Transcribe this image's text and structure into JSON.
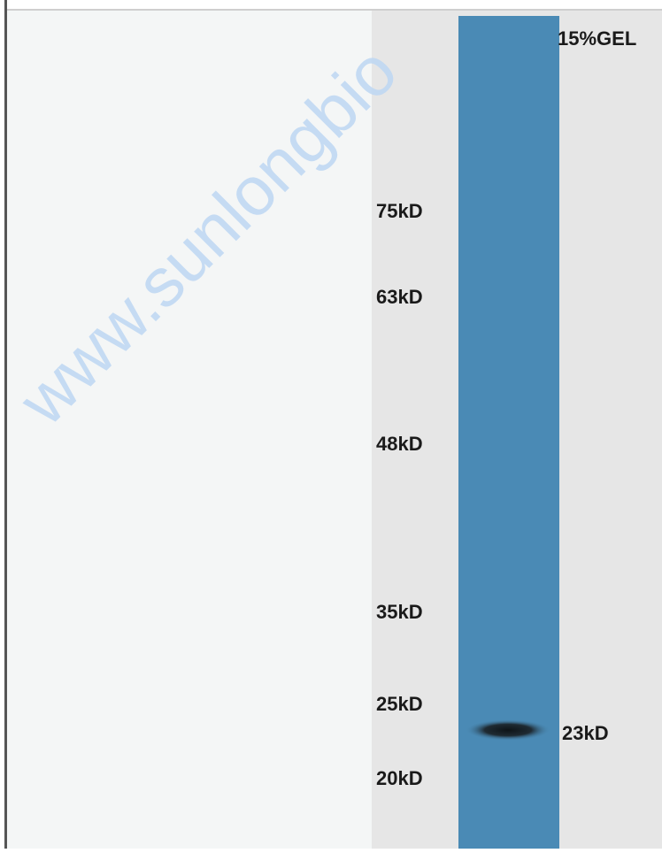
{
  "watermark": "www.sunlongbio",
  "lane_label": "15%GEL",
  "markers": [
    "75kD",
    "63kD",
    "48kD",
    "35kD",
    "25kD",
    "20kD"
  ],
  "band_label": "23kD"
}
